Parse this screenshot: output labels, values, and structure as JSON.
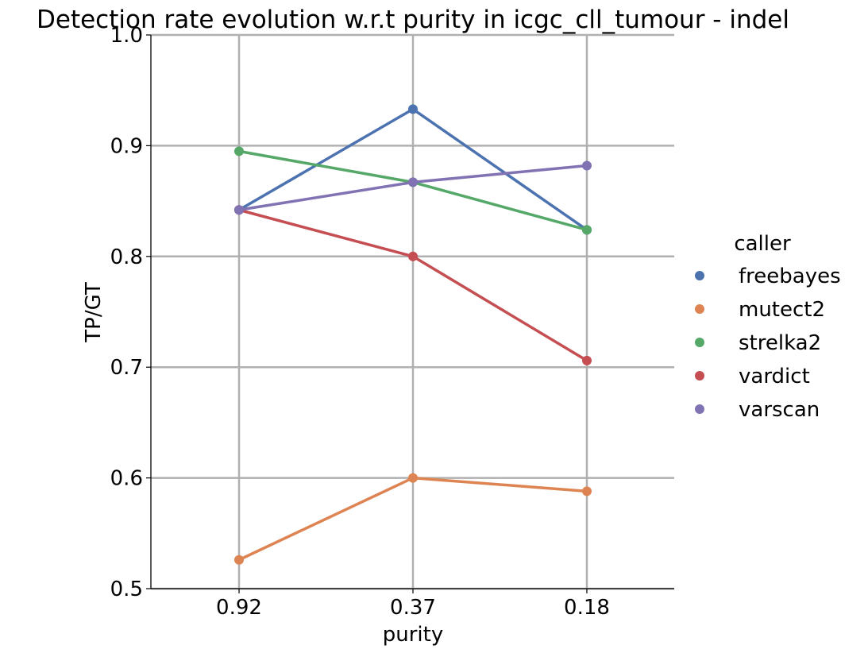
{
  "chart_data": {
    "type": "line",
    "title": "Detection rate evolution w.r.t purity in icgc_cll_tumour - indel",
    "xlabel": "purity",
    "ylabel": "TP/GT",
    "categories": [
      "0.92",
      "0.37",
      "0.18"
    ],
    "ylim": [
      0.5,
      1.0
    ],
    "yticks": [
      "0.5",
      "0.6",
      "0.7",
      "0.8",
      "0.9",
      "1.0"
    ],
    "grid": true,
    "legend": {
      "title": "caller",
      "placement": "right"
    },
    "series": [
      {
        "name": "freebayes",
        "color": "#4c72b0",
        "values": [
          0.842,
          0.933,
          0.824
        ]
      },
      {
        "name": "mutect2",
        "color": "#dd8452",
        "values": [
          0.526,
          0.6,
          0.588
        ]
      },
      {
        "name": "strelka2",
        "color": "#55a868",
        "values": [
          0.895,
          0.867,
          0.824
        ]
      },
      {
        "name": "vardict",
        "color": "#c44e52",
        "values": [
          0.842,
          0.8,
          0.706
        ]
      },
      {
        "name": "varscan",
        "color": "#8172b3",
        "values": [
          0.842,
          0.867,
          0.882
        ]
      }
    ]
  }
}
